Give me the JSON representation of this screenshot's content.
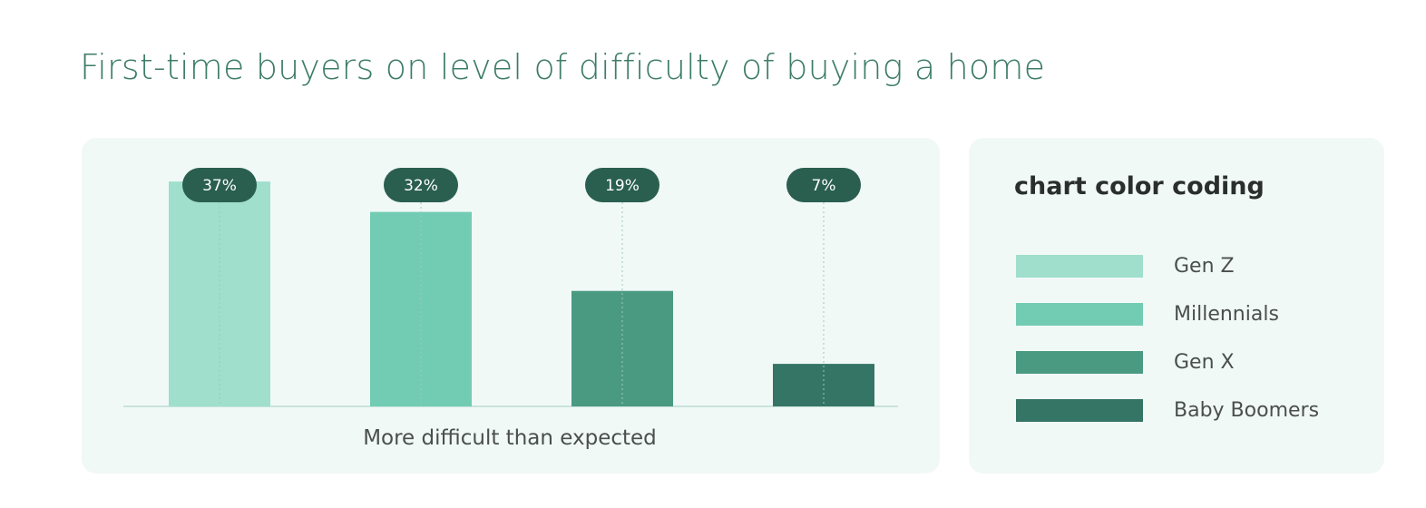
{
  "title": "First-time buyers on level of difficulty of buying a home",
  "legend": {
    "title": "chart color coding"
  },
  "colors": {
    "title": "#3d7c69",
    "panel_bg": "#f1f9f7",
    "baseline": "#c9e3dc",
    "leader": "#9fc8bc",
    "bubble": "#2a5f4f"
  },
  "chart_data": {
    "type": "bar",
    "categories": [
      "More difficult than expected"
    ],
    "xlabel": "More difficult than expected",
    "ylabel": "",
    "ylim": [
      0,
      40
    ],
    "grid": false,
    "legend_position": "right",
    "series": [
      {
        "name": "Gen Z",
        "color": "#9fdfcc",
        "values": [
          37
        ],
        "label": "37%"
      },
      {
        "name": "Millennials",
        "color": "#72ccb3",
        "values": [
          32
        ],
        "label": "32%"
      },
      {
        "name": "Gen X",
        "color": "#4a9a82",
        "values": [
          19
        ],
        "label": "19%"
      },
      {
        "name": "Baby Boomers",
        "color": "#357565",
        "values": [
          7
        ],
        "label": "7%"
      }
    ]
  }
}
